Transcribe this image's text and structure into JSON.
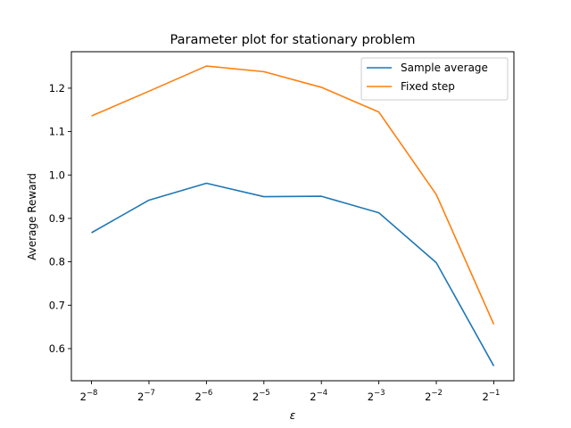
{
  "chart_data": {
    "type": "line",
    "title": "Parameter plot for stationary problem",
    "xlabel": "ε",
    "ylabel": "Average Reward",
    "x_scale": "log2",
    "x_exponents": [
      -8,
      -7,
      -6,
      -5,
      -4,
      -3,
      -2,
      -1
    ],
    "x_tick_base": "2",
    "x_tick_exponent_labels": [
      "−8",
      "−7",
      "−6",
      "−5",
      "−4",
      "−3",
      "−2",
      "−1"
    ],
    "y_ticks": [
      0.6,
      0.7,
      0.8,
      0.9,
      1.0,
      1.1,
      1.2
    ],
    "y_tick_labels": [
      "0.6",
      "0.7",
      "0.8",
      "0.9",
      "1.0",
      "1.1",
      "1.2"
    ],
    "ylim": [
      0.526,
      1.284
    ],
    "xlim": [
      -8.35,
      -0.65
    ],
    "grid": false,
    "legend_position": "top-right",
    "series": [
      {
        "name": "Sample average",
        "color": "#1f77b4",
        "values": [
          0.867,
          0.942,
          0.981,
          0.95,
          0.951,
          0.913,
          0.798,
          0.56
        ]
      },
      {
        "name": "Fixed step",
        "color": "#ff7f0e",
        "values": [
          1.136,
          1.193,
          1.251,
          1.238,
          1.202,
          1.145,
          0.955,
          0.656
        ]
      }
    ]
  }
}
